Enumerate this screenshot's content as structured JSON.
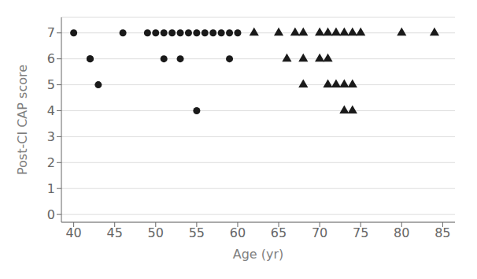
{
  "chart_data": {
    "type": "scatter",
    "xlabel": "Age (yr)",
    "ylabel": "Post-CI CAP score",
    "xlim": [
      38.5,
      86.5
    ],
    "ylim": [
      -0.3,
      7.6
    ],
    "xticks": [
      40,
      45,
      50,
      55,
      60,
      65,
      70,
      75,
      80,
      85
    ],
    "yticks": [
      0,
      1,
      2,
      3,
      4,
      5,
      6,
      7
    ],
    "grid": "y",
    "series": [
      {
        "marker": "circle",
        "color": "#1a1a1a",
        "x": [
          40,
          42,
          43,
          46,
          49,
          50,
          51,
          52,
          53,
          54,
          55,
          56,
          57,
          58,
          59,
          60,
          51,
          53,
          59,
          42,
          55
        ],
        "values": [
          7,
          6,
          5,
          7,
          7,
          7,
          7,
          7,
          7,
          7,
          7,
          7,
          7,
          7,
          7,
          7,
          6,
          6,
          6,
          6,
          4
        ]
      },
      {
        "marker": "triangle",
        "color": "#1a1a1a",
        "x": [
          62,
          65,
          67,
          68,
          70,
          71,
          72,
          73,
          74,
          75,
          66,
          68,
          70,
          71,
          68,
          71,
          72,
          73,
          74,
          73,
          74,
          80,
          84
        ],
        "values": [
          7,
          7,
          7,
          7,
          7,
          7,
          7,
          7,
          7,
          7,
          6,
          6,
          6,
          6,
          5,
          5,
          5,
          5,
          5,
          4,
          4,
          7,
          7
        ]
      }
    ]
  }
}
